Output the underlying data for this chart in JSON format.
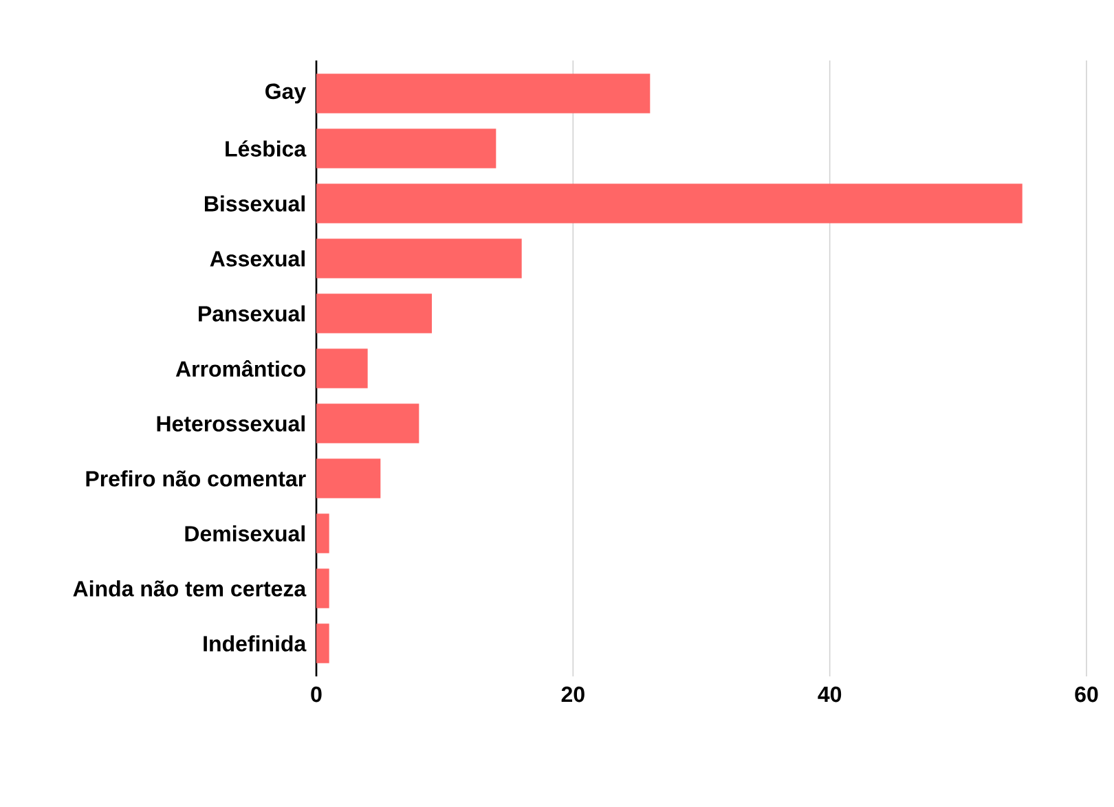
{
  "chart_data": {
    "type": "bar",
    "orientation": "horizontal",
    "categories": [
      "Gay",
      "Lésbica",
      "Bissexual",
      "Assexual",
      "Pansexual",
      "Arromântico",
      "Heterossexual",
      "Prefiro não comentar",
      "Demisexual",
      "Ainda não tem certeza",
      "Indefinida"
    ],
    "values": [
      26,
      14,
      55,
      16,
      9,
      4,
      8,
      5,
      1,
      1,
      1
    ],
    "color": "#ff6666",
    "xlim": [
      0,
      60
    ],
    "xticks": [
      0,
      20,
      40,
      60
    ],
    "grid": "x"
  }
}
